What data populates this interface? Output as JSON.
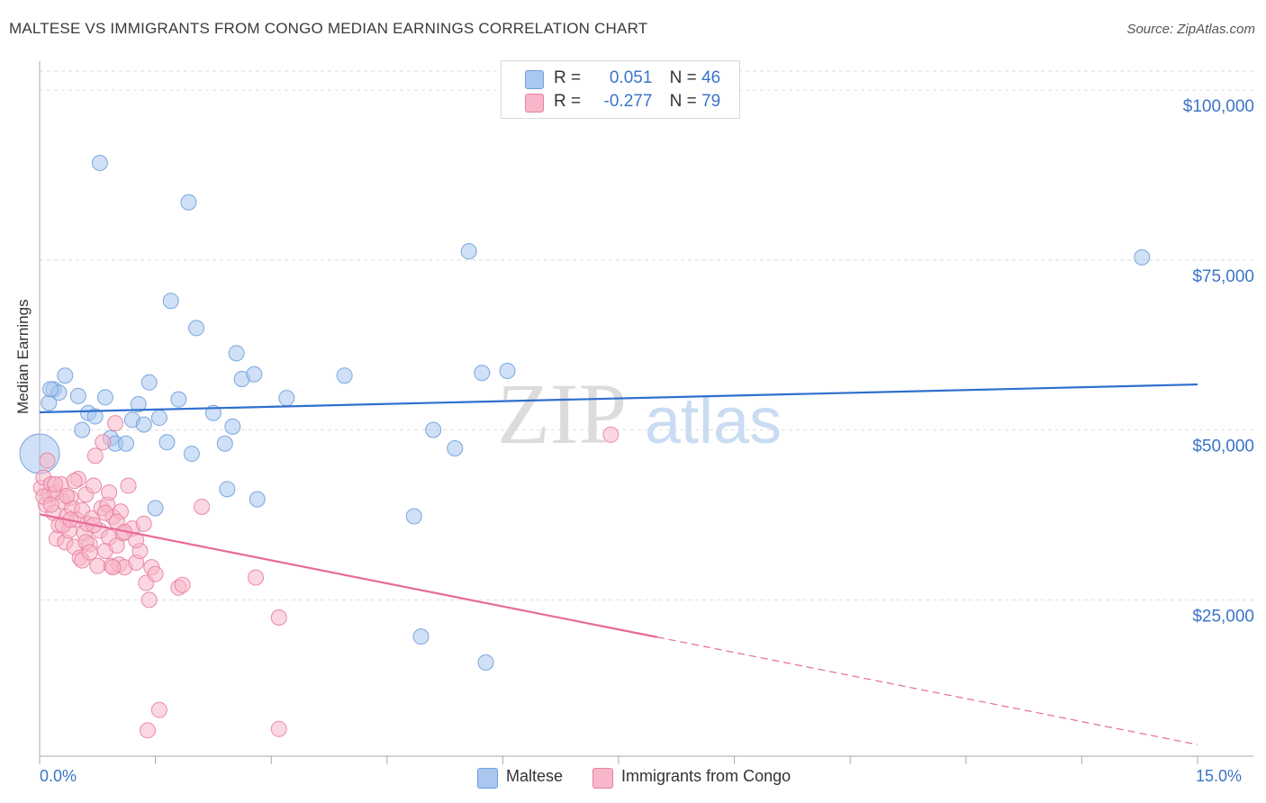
{
  "title": "MALTESE VS IMMIGRANTS FROM CONGO MEDIAN EARNINGS CORRELATION CHART",
  "source": "Source: ZipAtlas.com",
  "watermark": {
    "zip": "ZIP",
    "atlas": "atlas"
  },
  "legend_top": [
    {
      "r_label": "R =",
      "r_value": "0.051",
      "n_label": "N =",
      "n_value": "46",
      "color": "#a9c7ef",
      "stroke": "#6f9fdc"
    },
    {
      "r_label": "R =",
      "r_value": "-0.277",
      "n_label": "N =",
      "n_value": "79",
      "color": "#f7b6c9",
      "stroke": "#e87fa1"
    }
  ],
  "legend_bottom": [
    {
      "label": "Maltese",
      "color": "#a9c7ef",
      "stroke": "#6f9fdc"
    },
    {
      "label": "Immigrants from Congo",
      "color": "#f7b6c9",
      "stroke": "#e87fa1"
    }
  ],
  "x_tick_labels": {
    "left": "0.0%",
    "right": "15.0%"
  },
  "chart_data": {
    "type": "scatter",
    "title": "MALTESE VS IMMIGRANTS FROM CONGO MEDIAN EARNINGS CORRELATION CHART",
    "xlabel": "",
    "ylabel": "Median Earnings",
    "xlim": [
      0,
      15
    ],
    "ylim": [
      2000,
      104000
    ],
    "y_ticks": [
      25000,
      50000,
      75000,
      100000
    ],
    "y_tick_labels": [
      "$25,000",
      "$50,000",
      "$75,000",
      "$100,000"
    ],
    "grid": true,
    "legend_position": "top-center",
    "colors": {
      "blue_line": "#2f6fce",
      "pink_line": "#e8699a",
      "blue_point": "#a9c7ef",
      "pink_point": "#f7b6c9"
    },
    "series": [
      {
        "name": "Maltese",
        "r": 0.051,
        "n": 46,
        "trend": {
          "x0": 0,
          "y0": 52600,
          "x1": 15,
          "y1": 56700,
          "solid_until": 15
        },
        "points": [
          {
            "x": 0.0,
            "y": 46500,
            "big": true
          },
          {
            "x": 0.12,
            "y": 54000
          },
          {
            "x": 0.18,
            "y": 56000
          },
          {
            "x": 0.25,
            "y": 55500
          },
          {
            "x": 0.33,
            "y": 58000
          },
          {
            "x": 0.5,
            "y": 55000
          },
          {
            "x": 0.55,
            "y": 50000
          },
          {
            "x": 0.63,
            "y": 52500
          },
          {
            "x": 0.72,
            "y": 52000
          },
          {
            "x": 0.78,
            "y": 89300
          },
          {
            "x": 0.85,
            "y": 54800
          },
          {
            "x": 0.92,
            "y": 48800
          },
          {
            "x": 0.98,
            "y": 48000
          },
          {
            "x": 1.12,
            "y": 48000
          },
          {
            "x": 1.2,
            "y": 51500
          },
          {
            "x": 1.28,
            "y": 53800
          },
          {
            "x": 1.35,
            "y": 50800
          },
          {
            "x": 1.42,
            "y": 57000
          },
          {
            "x": 1.5,
            "y": 38500
          },
          {
            "x": 1.55,
            "y": 51800
          },
          {
            "x": 1.65,
            "y": 48200
          },
          {
            "x": 1.7,
            "y": 69000
          },
          {
            "x": 1.8,
            "y": 54500
          },
          {
            "x": 1.93,
            "y": 83500
          },
          {
            "x": 1.97,
            "y": 46500
          },
          {
            "x": 2.03,
            "y": 65000
          },
          {
            "x": 2.25,
            "y": 52500
          },
          {
            "x": 2.4,
            "y": 48000
          },
          {
            "x": 2.43,
            "y": 41300
          },
          {
            "x": 2.5,
            "y": 50500
          },
          {
            "x": 2.55,
            "y": 61300
          },
          {
            "x": 2.62,
            "y": 57500
          },
          {
            "x": 2.78,
            "y": 58200
          },
          {
            "x": 2.82,
            "y": 39800
          },
          {
            "x": 3.2,
            "y": 54700
          },
          {
            "x": 3.95,
            "y": 58000
          },
          {
            "x": 4.85,
            "y": 37300
          },
          {
            "x": 4.94,
            "y": 19600
          },
          {
            "x": 5.1,
            "y": 50000
          },
          {
            "x": 5.38,
            "y": 47300
          },
          {
            "x": 5.56,
            "y": 76300
          },
          {
            "x": 5.73,
            "y": 58400
          },
          {
            "x": 5.78,
            "y": 15800
          },
          {
            "x": 6.06,
            "y": 58700
          },
          {
            "x": 14.28,
            "y": 75400
          },
          {
            "x": 0.14,
            "y": 56000
          }
        ]
      },
      {
        "name": "Immigrants from Congo",
        "r": -0.277,
        "n": 79,
        "trend": {
          "x0": 0,
          "y0": 37600,
          "x1": 15,
          "y1": 3700,
          "solid_until": 8.0
        },
        "points": [
          {
            "x": 0.02,
            "y": 41500
          },
          {
            "x": 0.05,
            "y": 43000
          },
          {
            "x": 0.08,
            "y": 39000
          },
          {
            "x": 0.1,
            "y": 45500
          },
          {
            "x": 0.12,
            "y": 40500
          },
          {
            "x": 0.15,
            "y": 42000
          },
          {
            "x": 0.18,
            "y": 37800
          },
          {
            "x": 0.2,
            "y": 40800
          },
          {
            "x": 0.22,
            "y": 34000
          },
          {
            "x": 0.25,
            "y": 36000
          },
          {
            "x": 0.28,
            "y": 42000
          },
          {
            "x": 0.3,
            "y": 39500
          },
          {
            "x": 0.33,
            "y": 33500
          },
          {
            "x": 0.35,
            "y": 37200
          },
          {
            "x": 0.38,
            "y": 35200
          },
          {
            "x": 0.4,
            "y": 40000
          },
          {
            "x": 0.42,
            "y": 38500
          },
          {
            "x": 0.45,
            "y": 32800
          },
          {
            "x": 0.48,
            "y": 36800
          },
          {
            "x": 0.5,
            "y": 42800
          },
          {
            "x": 0.52,
            "y": 31200
          },
          {
            "x": 0.55,
            "y": 38200
          },
          {
            "x": 0.58,
            "y": 34800
          },
          {
            "x": 0.6,
            "y": 40500
          },
          {
            "x": 0.62,
            "y": 36200
          },
          {
            "x": 0.65,
            "y": 33200
          },
          {
            "x": 0.68,
            "y": 37000
          },
          {
            "x": 0.7,
            "y": 41800
          },
          {
            "x": 0.72,
            "y": 46200
          },
          {
            "x": 0.75,
            "y": 30000
          },
          {
            "x": 0.78,
            "y": 35200
          },
          {
            "x": 0.8,
            "y": 38500
          },
          {
            "x": 0.82,
            "y": 48200
          },
          {
            "x": 0.85,
            "y": 32200
          },
          {
            "x": 0.88,
            "y": 39000
          },
          {
            "x": 0.9,
            "y": 34200
          },
          {
            "x": 0.93,
            "y": 30000
          },
          {
            "x": 0.95,
            "y": 37200
          },
          {
            "x": 0.98,
            "y": 51000
          },
          {
            "x": 1.0,
            "y": 33000
          },
          {
            "x": 1.03,
            "y": 30200
          },
          {
            "x": 1.05,
            "y": 38000
          },
          {
            "x": 1.08,
            "y": 34800
          },
          {
            "x": 1.1,
            "y": 29800
          },
          {
            "x": 1.15,
            "y": 41800
          },
          {
            "x": 1.2,
            "y": 35500
          },
          {
            "x": 1.25,
            "y": 30500
          },
          {
            "x": 1.3,
            "y": 32200
          },
          {
            "x": 1.35,
            "y": 36200
          },
          {
            "x": 1.38,
            "y": 27500
          },
          {
            "x": 1.42,
            "y": 25000
          },
          {
            "x": 1.45,
            "y": 29800
          },
          {
            "x": 1.5,
            "y": 28800
          },
          {
            "x": 1.55,
            "y": 8800
          },
          {
            "x": 1.4,
            "y": 5800
          },
          {
            "x": 1.8,
            "y": 26800
          },
          {
            "x": 1.85,
            "y": 27200
          },
          {
            "x": 2.1,
            "y": 38700
          },
          {
            "x": 2.8,
            "y": 28300
          },
          {
            "x": 3.1,
            "y": 22400
          },
          {
            "x": 3.1,
            "y": 6000
          },
          {
            "x": 7.4,
            "y": 49300
          },
          {
            "x": 0.05,
            "y": 40200
          },
          {
            "x": 0.35,
            "y": 40300
          },
          {
            "x": 0.6,
            "y": 33500
          },
          {
            "x": 0.9,
            "y": 40800
          },
          {
            "x": 0.45,
            "y": 42500
          },
          {
            "x": 0.15,
            "y": 39000
          },
          {
            "x": 0.7,
            "y": 36000
          },
          {
            "x": 1.0,
            "y": 36500
          },
          {
            "x": 0.3,
            "y": 36000
          },
          {
            "x": 0.55,
            "y": 30800
          },
          {
            "x": 0.85,
            "y": 37800
          },
          {
            "x": 1.25,
            "y": 33800
          },
          {
            "x": 0.2,
            "y": 42000
          },
          {
            "x": 0.65,
            "y": 32000
          },
          {
            "x": 1.1,
            "y": 35000
          },
          {
            "x": 0.4,
            "y": 36800
          },
          {
            "x": 0.95,
            "y": 29800
          }
        ]
      }
    ]
  }
}
